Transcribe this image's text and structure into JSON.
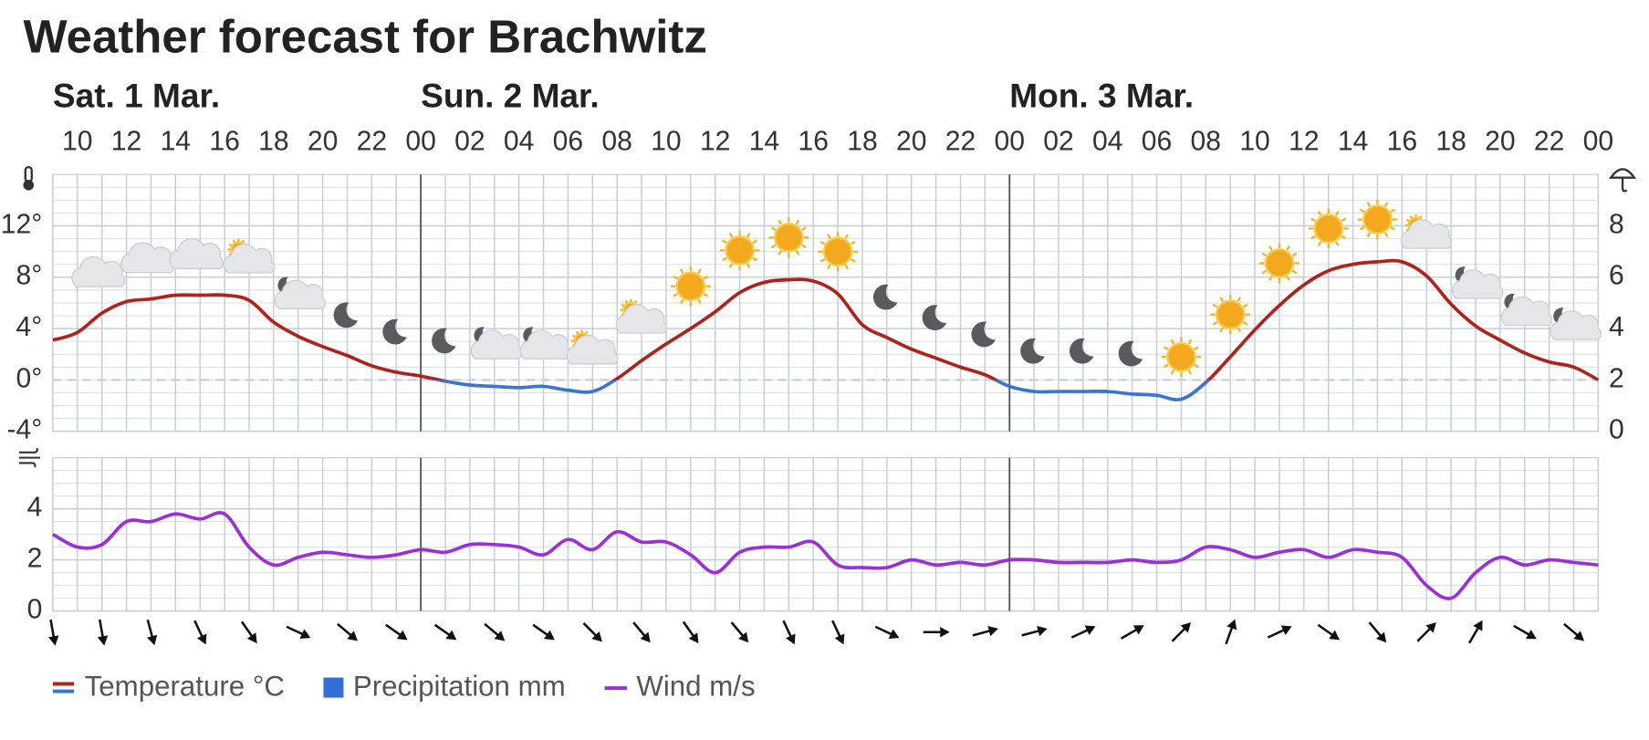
{
  "title": "Weather forecast for Brachwitz",
  "days": [
    {
      "label": "Sat. 1 Mar.",
      "start": 9
    },
    {
      "label": "Sun. 2 Mar.",
      "start": 24
    },
    {
      "label": "Mon. 3 Mar.",
      "start": 48
    }
  ],
  "chart_data": [
    {
      "type": "line",
      "x": [
        9,
        10,
        11,
        12,
        13,
        14,
        15,
        16,
        17,
        18,
        19,
        20,
        21,
        22,
        23,
        24,
        25,
        26,
        27,
        28,
        29,
        30,
        31,
        32,
        33,
        34,
        35,
        36,
        37,
        38,
        39,
        40,
        41,
        42,
        43,
        44,
        45,
        46,
        47,
        48,
        49,
        50,
        51,
        52,
        53,
        54,
        55,
        56,
        57,
        58,
        59,
        60,
        61,
        62,
        63,
        64,
        65,
        66,
        67,
        68,
        69,
        70,
        71,
        72
      ],
      "xlim": [
        9,
        72
      ],
      "xticks": [
        10,
        12,
        14,
        16,
        18,
        20,
        22,
        {
          "value": 24,
          "label": "00"
        },
        {
          "value": 26,
          "label": "02"
        },
        {
          "value": 28,
          "label": "04"
        },
        {
          "value": 30,
          "label": "06"
        },
        {
          "value": 32,
          "label": "08"
        },
        {
          "value": 34,
          "label": "10"
        },
        {
          "value": 36,
          "label": "12"
        },
        {
          "value": 38,
          "label": "14"
        },
        {
          "value": 40,
          "label": "16"
        },
        {
          "value": 42,
          "label": "18"
        },
        {
          "value": 44,
          "label": "20"
        },
        {
          "value": 46,
          "label": "22"
        },
        {
          "value": 48,
          "label": "00"
        },
        {
          "value": 50,
          "label": "02"
        },
        {
          "value": 52,
          "label": "04"
        },
        {
          "value": 54,
          "label": "06"
        },
        {
          "value": 56,
          "label": "08"
        },
        {
          "value": 58,
          "label": "10"
        },
        {
          "value": 60,
          "label": "12"
        },
        {
          "value": 62,
          "label": "14"
        },
        {
          "value": 64,
          "label": "16"
        },
        {
          "value": 66,
          "label": "18"
        },
        {
          "value": 68,
          "label": "20"
        },
        {
          "value": 70,
          "label": "22"
        },
        {
          "value": 72,
          "label": "00"
        }
      ],
      "ylim": [
        -4,
        16
      ],
      "yticks": [
        {
          "value": -4,
          "label": "-4°"
        },
        {
          "value": 0,
          "label": "0°"
        },
        {
          "value": 4,
          "label": "4°"
        },
        {
          "value": 8,
          "label": "8°"
        },
        {
          "value": 12,
          "label": "12°"
        }
      ],
      "y2lim": [
        0,
        10
      ],
      "y2ticks": [
        0,
        2,
        4,
        6,
        8
      ],
      "grid": true,
      "series": [
        {
          "name": "Temperature °C",
          "color": "#ad231d",
          "negative_color": "#3a76d0",
          "values": [
            3.1,
            3.7,
            5.2,
            6.1,
            6.3,
            6.6,
            6.6,
            6.6,
            6.2,
            4.5,
            3.4,
            2.6,
            1.9,
            1.1,
            0.6,
            0.3,
            -0.1,
            -0.4,
            -0.5,
            -0.6,
            -0.5,
            -0.8,
            -0.9,
            0.1,
            1.5,
            2.8,
            4.0,
            5.3,
            6.8,
            7.6,
            7.8,
            7.7,
            6.7,
            4.3,
            3.3,
            2.4,
            1.7,
            1.0,
            0.4,
            -0.5,
            -0.9,
            -0.9,
            -0.9,
            -0.9,
            -1.1,
            -1.2,
            -1.5,
            -0.2,
            1.8,
            3.9,
            5.8,
            7.4,
            8.5,
            9.0,
            9.2,
            9.2,
            8.1,
            5.9,
            4.2,
            3.1,
            2.1,
            1.4,
            1.0,
            0.0
          ]
        },
        {
          "name": "Precipitation mm",
          "color": "#2f6fd6",
          "axis": "y2",
          "values": [
            0,
            0,
            0,
            0,
            0,
            0,
            0,
            0,
            0,
            0,
            0,
            0,
            0,
            0,
            0,
            0,
            0,
            0,
            0,
            0,
            0,
            0,
            0,
            0,
            0,
            0,
            0,
            0,
            0,
            0,
            0,
            0,
            0,
            0,
            0,
            0,
            0,
            0,
            0,
            0,
            0,
            0,
            0,
            0,
            0,
            0,
            0,
            0,
            0,
            0,
            0,
            0,
            0,
            0,
            0,
            0,
            0,
            0,
            0,
            0,
            0,
            0,
            0,
            0
          ]
        }
      ]
    },
    {
      "type": "line",
      "x": [
        9,
        10,
        11,
        12,
        13,
        14,
        15,
        16,
        17,
        18,
        19,
        20,
        21,
        22,
        23,
        24,
        25,
        26,
        27,
        28,
        29,
        30,
        31,
        32,
        33,
        34,
        35,
        36,
        37,
        38,
        39,
        40,
        41,
        42,
        43,
        44,
        45,
        46,
        47,
        48,
        49,
        50,
        51,
        52,
        53,
        54,
        55,
        56,
        57,
        58,
        59,
        60,
        61,
        62,
        63,
        64,
        65,
        66,
        67,
        68,
        69,
        70,
        71,
        72
      ],
      "xlim": [
        9,
        72
      ],
      "ylim": [
        0,
        6
      ],
      "yticks": [
        0,
        2,
        4
      ],
      "grid": true,
      "series": [
        {
          "name": "Wind m/s",
          "color": "#9b30d9",
          "values": [
            3.0,
            2.5,
            2.6,
            3.5,
            3.5,
            3.8,
            3.6,
            3.8,
            2.5,
            1.8,
            2.1,
            2.3,
            2.2,
            2.1,
            2.2,
            2.4,
            2.3,
            2.6,
            2.6,
            2.5,
            2.2,
            2.8,
            2.4,
            3.1,
            2.7,
            2.7,
            2.2,
            1.5,
            2.3,
            2.5,
            2.5,
            2.7,
            1.8,
            1.7,
            1.7,
            2.0,
            1.8,
            1.9,
            1.8,
            2.0,
            2.0,
            1.9,
            1.9,
            1.9,
            2.0,
            1.9,
            2.0,
            2.5,
            2.4,
            2.1,
            2.3,
            2.4,
            2.1,
            2.4,
            2.3,
            2.1,
            1.0,
            0.5,
            1.5,
            2.1,
            1.8,
            2.0,
            1.9,
            1.8
          ]
        }
      ],
      "direction_x": [
        9,
        11,
        13,
        15,
        17,
        19,
        21,
        23,
        25,
        27,
        29,
        31,
        33,
        35,
        37,
        39,
        41,
        43,
        45,
        47,
        49,
        51,
        53,
        55,
        57,
        59,
        61,
        63,
        65,
        67,
        69,
        71
      ],
      "direction": [
        170,
        170,
        165,
        155,
        145,
        115,
        130,
        125,
        125,
        130,
        125,
        135,
        140,
        145,
        140,
        155,
        155,
        115,
        90,
        75,
        75,
        65,
        60,
        45,
        20,
        65,
        125,
        140,
        45,
        30,
        120,
        130
      ]
    }
  ]
}
